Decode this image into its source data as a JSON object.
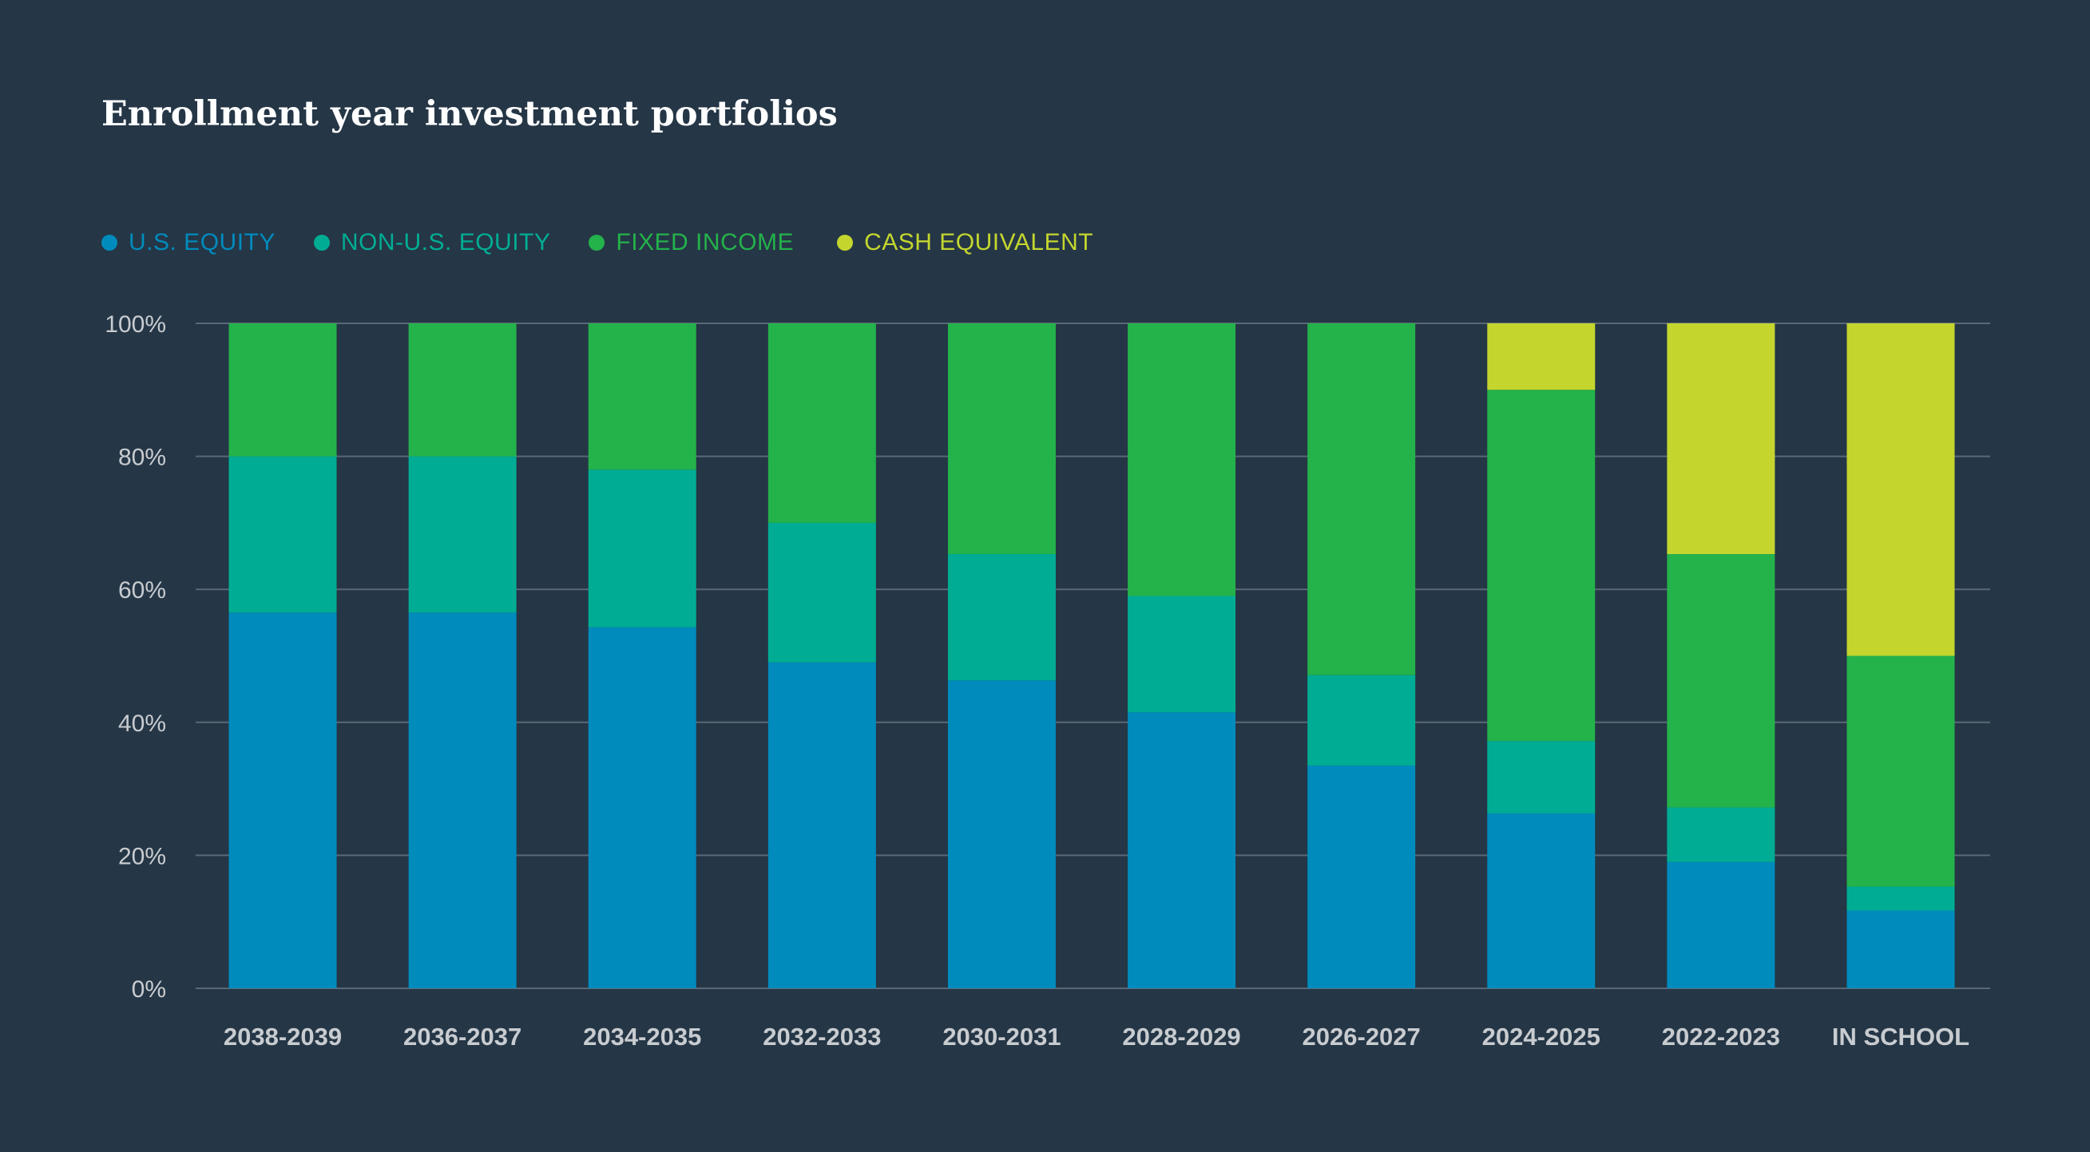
{
  "chart_data": {
    "type": "bar",
    "stacked": true,
    "title": "Enrollment year investment portfolios",
    "categories": [
      "2038-2039",
      "2036-2037",
      "2034-2035",
      "2032-2033",
      "2030-2031",
      "2028-2029",
      "2026-2027",
      "2024-2025",
      "2022-2023",
      "IN SCHOOL"
    ],
    "series": [
      {
        "name": "U.S. EQUITY",
        "color": "#008bbd",
        "values": [
          56.5,
          56.5,
          54.3,
          49.0,
          46.3,
          41.5,
          33.5,
          26.3,
          19.0,
          11.7
        ]
      },
      {
        "name": "NON-U.S. EQUITY",
        "color": "#00ad94",
        "values": [
          23.5,
          23.5,
          23.7,
          21.0,
          19.0,
          17.5,
          13.6,
          10.9,
          8.2,
          3.6
        ]
      },
      {
        "name": "FIXED INCOME",
        "color": "#24b24b",
        "values": [
          20.0,
          20.0,
          22.0,
          30.0,
          34.7,
          41.0,
          52.9,
          52.8,
          38.1,
          34.7
        ]
      },
      {
        "name": "CASH EQUIVALENT",
        "color": "#c4d62e",
        "values": [
          0,
          0,
          0,
          0,
          0,
          0,
          0,
          10.0,
          34.7,
          50.0
        ]
      }
    ],
    "yticks": [
      "0%",
      "20%",
      "40%",
      "60%",
      "80%",
      "100%"
    ],
    "ylim": [
      0,
      100
    ],
    "xlabel": "",
    "ylabel": "",
    "grid": true,
    "legend_position": "top-left",
    "background": "#253646"
  }
}
